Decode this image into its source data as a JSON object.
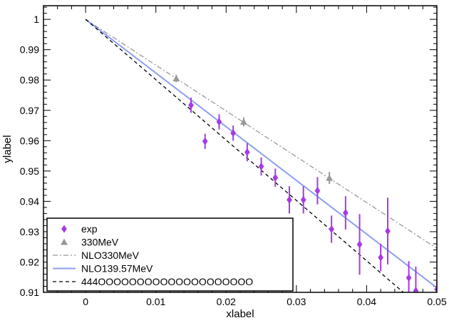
{
  "chart_data": {
    "type": "scatter",
    "xlabel": "xlabel",
    "ylabel": "ylabel",
    "xlim": [
      -0.006,
      0.05
    ],
    "ylim": [
      0.91,
      1.0045
    ],
    "x_ticks": [
      0,
      0.01,
      0.02,
      0.03,
      0.04,
      0.05
    ],
    "x_tick_labels": [
      "0",
      "0.01",
      "0.02",
      "0.03",
      "0.04",
      "0.05"
    ],
    "y_ticks": [
      0.91,
      0.92,
      0.93,
      0.94,
      0.95,
      0.96,
      0.97,
      0.98,
      0.99,
      1.0
    ],
    "y_tick_labels": [
      "0.91",
      "0.92",
      "0.93",
      "0.94",
      "0.95",
      "0.96",
      "0.97",
      "0.98",
      "0.99",
      "1"
    ],
    "grid": false,
    "legend_placement": "bottom-left",
    "series": [
      {
        "name": "exp",
        "kind": "points-with-errorbars",
        "marker": "diamond",
        "color": "#a63ae6",
        "points": [
          {
            "x": 0.015,
            "y": 0.9717,
            "err": 0.0025
          },
          {
            "x": 0.017,
            "y": 0.9598,
            "err": 0.0025
          },
          {
            "x": 0.019,
            "y": 0.9662,
            "err": 0.0025
          },
          {
            "x": 0.021,
            "y": 0.9625,
            "err": 0.0025
          },
          {
            "x": 0.023,
            "y": 0.9562,
            "err": 0.003
          },
          {
            "x": 0.025,
            "y": 0.9515,
            "err": 0.003
          },
          {
            "x": 0.027,
            "y": 0.9478,
            "err": 0.003
          },
          {
            "x": 0.029,
            "y": 0.9405,
            "err": 0.0045
          },
          {
            "x": 0.031,
            "y": 0.9405,
            "err": 0.0045
          },
          {
            "x": 0.033,
            "y": 0.9435,
            "err": 0.0045
          },
          {
            "x": 0.035,
            "y": 0.9308,
            "err": 0.0045
          },
          {
            "x": 0.037,
            "y": 0.9362,
            "err": 0.0055
          },
          {
            "x": 0.039,
            "y": 0.9258,
            "err": 0.01
          },
          {
            "x": 0.042,
            "y": 0.9215,
            "err": 0.0045
          },
          {
            "x": 0.043,
            "y": 0.9302,
            "err": 0.011
          },
          {
            "x": 0.046,
            "y": 0.9148,
            "err": 0.0055
          },
          {
            "x": 0.047,
            "y": 0.9105,
            "err": 0.008
          },
          {
            "x": 0.05,
            "y": 0.911,
            "err": 0.003
          }
        ]
      },
      {
        "name": "330MeV",
        "kind": "points-with-errorbars",
        "marker": "triangle",
        "color": "#999999",
        "points": [
          {
            "x": 0.0129,
            "y": 0.9805,
            "err": 0.0012
          },
          {
            "x": 0.0225,
            "y": 0.9662,
            "err": 0.0015
          },
          {
            "x": 0.0347,
            "y": 0.9477,
            "err": 0.002
          }
        ]
      },
      {
        "name": "NLO330MeV",
        "kind": "line",
        "style": "dash-dot",
        "color": "#999999",
        "x": [
          0,
          0.05
        ],
        "y": [
          1.0,
          0.9245
        ]
      },
      {
        "name": "NLO139.57MeV",
        "kind": "line",
        "style": "solid",
        "color": "#8c9ef0",
        "x": [
          0,
          0.05
        ],
        "y": [
          1.0,
          0.9115
        ]
      },
      {
        "name": "444OOOOOOOOOOOOOOOOOOOO",
        "kind": "line",
        "style": "dashed",
        "color": "#000000",
        "x": [
          0,
          0.05
        ],
        "y": [
          1.0,
          0.9005
        ]
      }
    ]
  }
}
